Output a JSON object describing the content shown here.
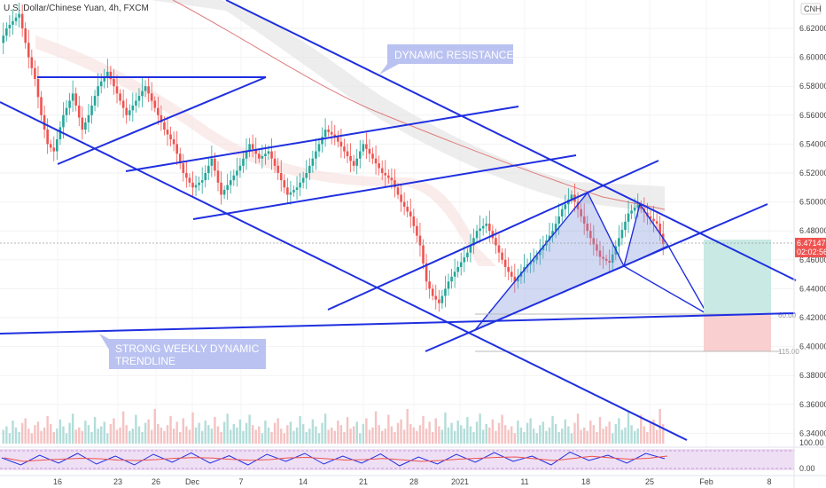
{
  "chart_data": {
    "type": "candlestick",
    "title": "U.S. Dollar/Chinese Yuan, 4h, FXCM",
    "currency": "CNH",
    "y_axis": {
      "min": 6.33,
      "max": 6.64,
      "ticks": [
        "6.62000",
        "6.60000",
        "6.58000",
        "6.56000",
        "6.54000",
        "6.52000",
        "6.50000",
        "6.48000",
        "6.46000",
        "6.44000",
        "6.42000",
        "6.40000",
        "6.38000",
        "6.36000",
        "6.34000"
      ]
    },
    "x_axis": {
      "ticks": [
        "16",
        "23",
        "26",
        "Dec",
        "7",
        "14",
        "21",
        "28",
        "2021",
        "11",
        "18",
        "25",
        "Feb",
        "8"
      ]
    },
    "price_badge": {
      "price": "6.47147",
      "countdown": "02:02:56"
    },
    "annotations": {
      "dynamic_resistance": "DYNAMIC RESISTANCE",
      "weekly_trendline_1": "STRONG WEEKLY DYNAMIC",
      "weekly_trendline_2": "TRENDLINE"
    },
    "position_labels": {
      "target": "60.00",
      "stop": "115.00"
    },
    "oscillator_ticks": [
      "100.00",
      "0.00"
    ],
    "price_path": [
      [
        0,
        6.61
      ],
      [
        2,
        6.62
      ],
      [
        4,
        6.625
      ],
      [
        6,
        6.63
      ],
      [
        9,
        6.6
      ],
      [
        11,
        6.585
      ],
      [
        13,
        6.56
      ],
      [
        15,
        6.54
      ],
      [
        17,
        6.535
      ],
      [
        20,
        6.56
      ],
      [
        23,
        6.575
      ],
      [
        26,
        6.55
      ],
      [
        28,
        6.56
      ],
      [
        31,
        6.58
      ],
      [
        34,
        6.59
      ],
      [
        37,
        6.575
      ],
      [
        40,
        6.56
      ],
      [
        43,
        6.57
      ],
      [
        46,
        6.58
      ],
      [
        49,
        6.565
      ],
      [
        52,
        6.55
      ],
      [
        55,
        6.54
      ],
      [
        58,
        6.52
      ],
      [
        61,
        6.51
      ],
      [
        64,
        6.515
      ],
      [
        67,
        6.53
      ],
      [
        70,
        6.505
      ],
      [
        73,
        6.515
      ],
      [
        76,
        6.525
      ],
      [
        79,
        6.54
      ],
      [
        82,
        6.53
      ],
      [
        85,
        6.535
      ],
      [
        88,
        6.52
      ],
      [
        91,
        6.505
      ],
      [
        94,
        6.51
      ],
      [
        97,
        6.52
      ],
      [
        100,
        6.535
      ],
      [
        103,
        6.55
      ],
      [
        106,
        6.545
      ],
      [
        109,
        6.535
      ],
      [
        112,
        6.525
      ],
      [
        115,
        6.54
      ],
      [
        118,
        6.53
      ],
      [
        121,
        6.52
      ],
      [
        124,
        6.515
      ],
      [
        127,
        6.5
      ],
      [
        130,
        6.49
      ],
      [
        133,
        6.47
      ],
      [
        135,
        6.445
      ],
      [
        137,
        6.435
      ],
      [
        139,
        6.43
      ],
      [
        142,
        6.445
      ],
      [
        145,
        6.455
      ],
      [
        148,
        6.465
      ],
      [
        151,
        6.48
      ],
      [
        154,
        6.485
      ],
      [
        157,
        6.47
      ],
      [
        160,
        6.455
      ],
      [
        163,
        6.445
      ],
      [
        166,
        6.455
      ],
      [
        169,
        6.46
      ],
      [
        172,
        6.47
      ],
      [
        175,
        6.48
      ],
      [
        178,
        6.495
      ],
      [
        181,
        6.505
      ],
      [
        184,
        6.49
      ],
      [
        187,
        6.475
      ],
      [
        190,
        6.462
      ],
      [
        193,
        6.458
      ],
      [
        196,
        6.475
      ],
      [
        199,
        6.492
      ],
      [
        202,
        6.498
      ],
      [
        205,
        6.49
      ],
      [
        208,
        6.485
      ],
      [
        210,
        6.471
      ]
    ],
    "volume_profile": [
      12,
      15,
      9,
      20,
      14,
      10,
      18,
      22,
      13,
      9,
      16,
      19,
      11,
      14,
      24,
      17,
      10,
      13,
      21,
      15,
      9,
      18,
      26,
      12,
      14,
      11,
      20,
      16,
      10,
      23,
      13,
      15,
      19,
      9,
      17,
      22,
      12,
      14,
      28,
      16,
      11,
      13,
      25,
      15,
      10,
      18,
      21,
      12,
      30,
      17,
      14,
      11,
      16,
      24,
      13,
      19,
      10,
      22,
      15,
      12,
      27,
      14,
      18,
      11,
      20,
      16,
      13,
      23,
      15,
      10,
      19,
      26,
      12,
      17,
      14,
      21,
      11,
      18,
      25,
      16
    ],
    "oscillator_path": [
      [
        0,
        60
      ],
      [
        6,
        20
      ],
      [
        12,
        75
      ],
      [
        18,
        30
      ],
      [
        24,
        85
      ],
      [
        30,
        25
      ],
      [
        36,
        70
      ],
      [
        42,
        20
      ],
      [
        48,
        80
      ],
      [
        54,
        35
      ],
      [
        60,
        88
      ],
      [
        66,
        30
      ],
      [
        72,
        72
      ],
      [
        78,
        20
      ],
      [
        84,
        80
      ],
      [
        90,
        40
      ],
      [
        96,
        85
      ],
      [
        102,
        25
      ],
      [
        108,
        70
      ],
      [
        114,
        30
      ],
      [
        120,
        82
      ],
      [
        126,
        15
      ],
      [
        132,
        65
      ],
      [
        138,
        25
      ],
      [
        144,
        80
      ],
      [
        150,
        35
      ],
      [
        156,
        90
      ],
      [
        162,
        40
      ],
      [
        168,
        70
      ],
      [
        174,
        20
      ],
      [
        180,
        92
      ],
      [
        186,
        45
      ],
      [
        192,
        75
      ],
      [
        198,
        30
      ],
      [
        204,
        85
      ],
      [
        210,
        55
      ]
    ]
  },
  "colors": {
    "trendline": "#1f2fe0",
    "candle_up": "#26a69a",
    "candle_down": "#ef5350",
    "annotation_fill": "#b3bbf0",
    "pattern_fill": "#7d91dd",
    "target_fill": "#c8e9e4",
    "stop_fill": "#f9cfcf",
    "badge": "#ef5350",
    "oscillator_bg": "#ead7f2"
  }
}
